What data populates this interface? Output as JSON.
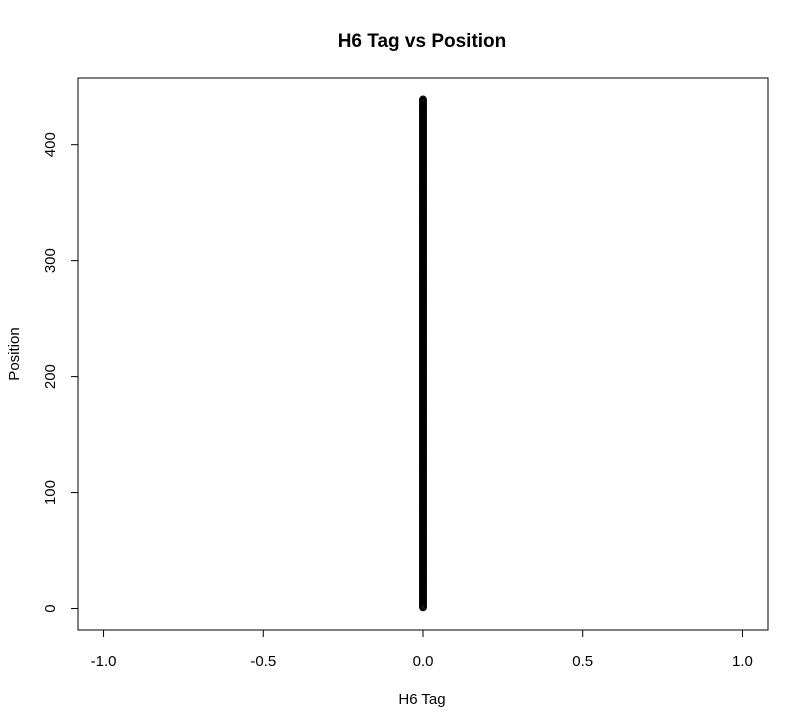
{
  "chart_data": {
    "type": "scatter",
    "title": "H6 Tag vs Position",
    "xlabel": "H6 Tag",
    "ylabel": "Position",
    "xlim": [
      -1.08,
      1.08
    ],
    "ylim": [
      -18.5,
      457.5
    ],
    "xticks": [
      -1.0,
      -0.5,
      0.0,
      0.5,
      1.0
    ],
    "xtick_labels": [
      "-1.0",
      "-0.5",
      "0.0",
      "0.5",
      "1.0"
    ],
    "yticks": [
      0,
      100,
      200,
      300,
      400
    ],
    "ytick_labels": [
      "0",
      "100",
      "200",
      "300",
      "400"
    ],
    "grid": false,
    "legend": "none",
    "series": [
      {
        "x_value": 0,
        "y_range": [
          1,
          439
        ],
        "y_step": 1,
        "marker": "open-circle",
        "color": "#000000"
      }
    ]
  }
}
